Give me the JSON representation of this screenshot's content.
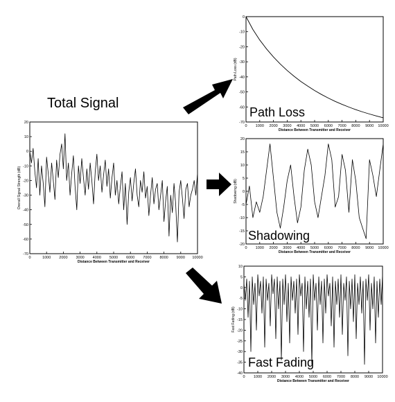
{
  "diagram": {
    "title": "Total Signal",
    "colors": {
      "ink": "#000000",
      "background": "#ffffff"
    },
    "arrows": 3
  },
  "chart_data": [
    {
      "id": "total",
      "type": "line",
      "xlabel": "Distance Between Transmitter and Receiver",
      "ylabel": "Overall Signal Strength (dB)",
      "xlim": [
        0,
        10000
      ],
      "ylim": [
        -70,
        20
      ],
      "xticks": [
        "0",
        "1000",
        "2000",
        "3000",
        "4000",
        "5000",
        "6000",
        "7000",
        "8000",
        "9000",
        "10000"
      ],
      "yticks": [
        "20",
        "10",
        "0",
        "-10",
        "-20",
        "-30",
        "-40",
        "-50",
        "-60",
        "-70"
      ],
      "series": [
        {
          "x": [
            0,
            100,
            200,
            300,
            400,
            500,
            600,
            700,
            800,
            900,
            1000,
            1100,
            1200,
            1300,
            1400,
            1500,
            1600,
            1700,
            1800,
            1900,
            2000,
            2100,
            2200,
            2300,
            2400,
            2500,
            2600,
            2700,
            2800,
            2900,
            3000,
            3100,
            3200,
            3300,
            3400,
            3500,
            3600,
            3700,
            3800,
            3900,
            4000,
            4100,
            4200,
            4300,
            4400,
            4500,
            4600,
            4700,
            4800,
            4900,
            5000,
            5100,
            5200,
            5300,
            5400,
            5500,
            5600,
            5700,
            5800,
            5900,
            6000,
            6100,
            6200,
            6300,
            6400,
            6500,
            6600,
            6700,
            6800,
            6900,
            7000,
            7100,
            7200,
            7300,
            7400,
            7500,
            7600,
            7700,
            7800,
            7900,
            8000,
            8100,
            8200,
            8300,
            8400,
            8500,
            8600,
            8700,
            8800,
            8900,
            9000,
            9100,
            9200,
            9300,
            9400,
            9500,
            9600,
            9700,
            9800,
            9900,
            10000
          ],
          "y": [
            0,
            -8,
            2,
            -14,
            -25,
            -5,
            -30,
            -10,
            -22,
            -38,
            -4,
            -15,
            -28,
            -8,
            -20,
            -33,
            -6,
            -18,
            -2,
            5,
            -12,
            12,
            -20,
            -8,
            -30,
            -15,
            -3,
            -24,
            -40,
            -10,
            -22,
            -5,
            -18,
            -30,
            -12,
            -26,
            -8,
            -20,
            -36,
            -14,
            -2,
            -20,
            -10,
            -28,
            -16,
            -6,
            -24,
            -12,
            -32,
            -18,
            -8,
            -30,
            -20,
            -36,
            -24,
            -14,
            -40,
            -22,
            -50,
            -28,
            -18,
            -34,
            -22,
            -12,
            -30,
            -38,
            -20,
            -28,
            -14,
            -32,
            -24,
            -44,
            -30,
            -18,
            -36,
            -26,
            -22,
            -40,
            -30,
            -20,
            -48,
            -34,
            -24,
            -58,
            -30,
            -42,
            -22,
            -36,
            -62,
            -28,
            -20,
            -32,
            -46,
            -26,
            -22,
            -38,
            -30,
            -26,
            -20,
            -30,
            -15
          ]
        }
      ]
    },
    {
      "id": "pathloss",
      "type": "line",
      "label": "Path Loss",
      "xlabel": "Distance Between Transmitter and Receiver",
      "ylabel": "Path Loss (dB)",
      "xlim": [
        0,
        10000
      ],
      "ylim": [
        -70,
        0
      ],
      "xticks": [
        "0",
        "1000",
        "2000",
        "3000",
        "4000",
        "5000",
        "6000",
        "7000",
        "8000",
        "9000",
        "10000"
      ],
      "yticks": [
        "0",
        "-10",
        "-20",
        "-30",
        "-40",
        "-50",
        "-60",
        "-70"
      ],
      "series": [
        {
          "x": [
            0,
            500,
            1000,
            1500,
            2000,
            2500,
            3000,
            3500,
            4000,
            4500,
            5000,
            5500,
            6000,
            6500,
            7000,
            7500,
            8000,
            8500,
            9000,
            9500,
            10000
          ],
          "y": [
            0,
            -8.5,
            -15.5,
            -21.5,
            -26.8,
            -31.5,
            -35.8,
            -39.6,
            -43.1,
            -46.2,
            -49.1,
            -51.7,
            -54.1,
            -56.3,
            -58.3,
            -60.1,
            -61.8,
            -63.3,
            -64.7,
            -66,
            -67.2
          ]
        }
      ]
    },
    {
      "id": "shadowing",
      "type": "line",
      "label": "Shadowing",
      "xlabel": "Distance Between Transmitter and Receiver",
      "ylabel": "Shadowing (dB)",
      "xlim": [
        0,
        10000
      ],
      "ylim": [
        -20,
        20
      ],
      "xticks": [
        "0",
        "1000",
        "2000",
        "3000",
        "4000",
        "5000",
        "6000",
        "7000",
        "8000",
        "9000",
        "10000"
      ],
      "yticks": [
        "20",
        "15",
        "10",
        "5",
        "0",
        "-5",
        "-10",
        "-15",
        "-20"
      ],
      "series": [
        {
          "x": [
            0,
            250,
            500,
            750,
            1000,
            1250,
            1500,
            1750,
            2000,
            2250,
            2500,
            2750,
            3000,
            3250,
            3500,
            3750,
            4000,
            4250,
            4500,
            4750,
            5000,
            5250,
            5500,
            5750,
            6000,
            6250,
            6500,
            6750,
            7000,
            7250,
            7500,
            7750,
            8000,
            8250,
            8500,
            8750,
            9000,
            9250,
            9500,
            9750,
            10000
          ],
          "y": [
            -5,
            2,
            -10,
            -4,
            -8,
            -2,
            8,
            18,
            5,
            -8,
            -14,
            -6,
            4,
            10,
            -2,
            -12,
            -6,
            8,
            16,
            10,
            -4,
            -10,
            -2,
            6,
            18,
            12,
            -6,
            -2,
            14,
            8,
            -8,
            12,
            4,
            -10,
            -14,
            -18,
            12,
            6,
            -2,
            8,
            18
          ]
        }
      ]
    },
    {
      "id": "fastfading",
      "type": "line",
      "label": "Fast Fading",
      "xlabel": "Distance Between Transmitter and Receiver",
      "ylabel": "Fast Fading (dB)",
      "xlim": [
        0,
        10000
      ],
      "ylim": [
        -40,
        10
      ],
      "xticks": [
        "0",
        "1000",
        "2000",
        "3000",
        "4000",
        "5000",
        "6000",
        "7000",
        "8000",
        "9000",
        "10000"
      ],
      "yticks": [
        "10",
        "5",
        "0",
        "-5",
        "-10",
        "-15",
        "-20",
        "-25",
        "-30",
        "-35",
        "-40"
      ],
      "series": [
        {
          "x": [
            0,
            100,
            200,
            300,
            400,
            500,
            600,
            700,
            800,
            900,
            1000,
            1100,
            1200,
            1300,
            1400,
            1500,
            1600,
            1700,
            1800,
            1900,
            2000,
            2100,
            2200,
            2300,
            2400,
            2500,
            2600,
            2700,
            2800,
            2900,
            3000,
            3100,
            3200,
            3300,
            3400,
            3500,
            3600,
            3700,
            3800,
            3900,
            4000,
            4100,
            4200,
            4300,
            4400,
            4500,
            4600,
            4700,
            4800,
            4900,
            5000,
            5100,
            5200,
            5300,
            5400,
            5500,
            5600,
            5700,
            5800,
            5900,
            6000,
            6100,
            6200,
            6300,
            6400,
            6500,
            6600,
            6700,
            6800,
            6900,
            7000,
            7100,
            7200,
            7300,
            7400,
            7500,
            7600,
            7700,
            7800,
            7900,
            8000,
            8100,
            8200,
            8300,
            8400,
            8500,
            8600,
            8700,
            8800,
            8900,
            9000,
            9100,
            9200,
            9300,
            9400,
            9500,
            9600,
            9700,
            9800,
            9900,
            10000
          ],
          "y": [
            2,
            -6,
            4,
            -14,
            3,
            -30,
            5,
            -8,
            2,
            -20,
            6,
            -4,
            3,
            -12,
            5,
            -28,
            4,
            -6,
            2,
            -18,
            6,
            -3,
            4,
            -24,
            5,
            -10,
            3,
            -34,
            4,
            -8,
            6,
            -16,
            2,
            -26,
            5,
            -6,
            3,
            -12,
            4,
            -22,
            6,
            -4,
            2,
            -30,
            5,
            -10,
            3,
            -14,
            4,
            -36,
            6,
            -6,
            2,
            -20,
            5,
            -8,
            3,
            -26,
            4,
            -12,
            6,
            -4,
            2,
            -18,
            5,
            -28,
            3,
            -8,
            4,
            -14,
            6,
            -22,
            2,
            -6,
            5,
            -32,
            3,
            -10,
            4,
            -16,
            6,
            -24,
            2,
            -8,
            5,
            -12,
            3,
            -36,
            4,
            -6,
            6,
            -20,
            2,
            -10,
            5,
            -26,
            3,
            -14,
            4,
            -8,
            6
          ]
        }
      ]
    }
  ]
}
